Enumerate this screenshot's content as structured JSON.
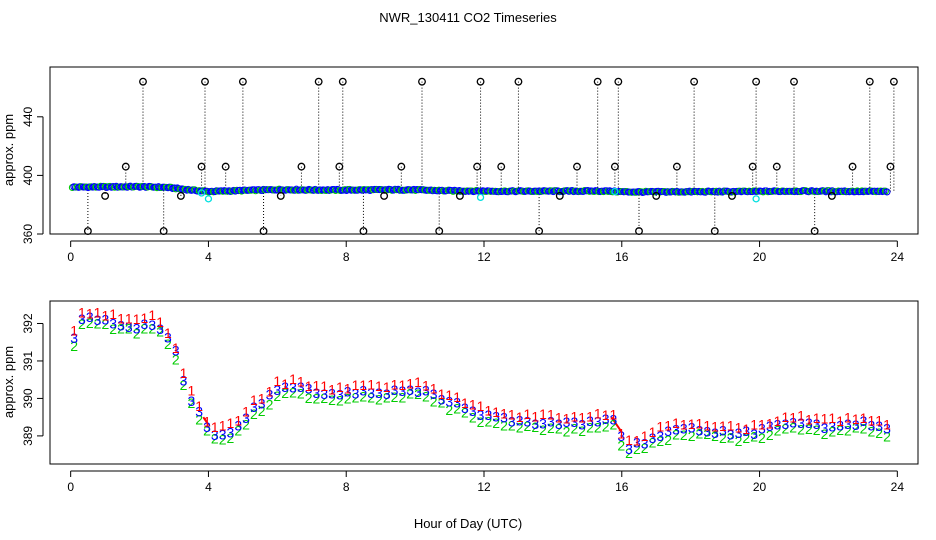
{
  "chart_data": {
    "type": "scatter",
    "title": "NWR_130411  CO2 Timeseries",
    "xlabel": "Hour of Day (UTC)",
    "colors": {
      "red": "#ff0000",
      "green": "#00cc00",
      "blue": "#0000ff",
      "cyan": "#00e0e0",
      "black": "#000000",
      "orange": "#ff8c00"
    },
    "panels": [
      {
        "name": "top",
        "ylabel": "approx. ppm",
        "xlim": [
          -0.6,
          24.6
        ],
        "ylim": [
          360,
          474
        ],
        "xticks": [
          0,
          4,
          8,
          12,
          16,
          20,
          24
        ],
        "xtick_labels": [
          "0",
          "4",
          "8",
          "12",
          "16",
          "20",
          "24"
        ],
        "yticks": [
          360,
          400,
          440
        ],
        "ytick_labels": [
          "360",
          "400",
          "440"
        ],
        "baseline": [
          [
            0.0,
            392.0
          ],
          [
            2.0,
            392.3
          ],
          [
            2.8,
            391.8
          ],
          [
            3.5,
            390.0
          ],
          [
            4.0,
            389.0
          ],
          [
            6.0,
            390.3
          ],
          [
            7.5,
            390.0
          ],
          [
            9.8,
            390.2
          ],
          [
            11.0,
            389.5
          ],
          [
            12.5,
            389.2
          ],
          [
            15.5,
            389.3
          ],
          [
            16.2,
            388.7
          ],
          [
            19.7,
            389.0
          ],
          [
            21.0,
            389.3
          ],
          [
            23.7,
            389.0
          ]
        ],
        "outlier_x": [
          0.5,
          1.0,
          1.6,
          2.1,
          2.7,
          3.2,
          3.8,
          3.9,
          4.5,
          5.0,
          5.6,
          6.1,
          6.7,
          7.2,
          7.8,
          7.9,
          8.5,
          9.1,
          9.6,
          10.2,
          10.7,
          11.3,
          11.8,
          11.9,
          12.5,
          13.0,
          13.6,
          14.2,
          14.7,
          15.3,
          15.8,
          15.9,
          16.5,
          17.0,
          17.6,
          18.1,
          18.7,
          19.2,
          19.8,
          19.9,
          20.5,
          21.0,
          21.6,
          22.1,
          22.7,
          23.2,
          23.8,
          23.9
        ],
        "outlier_y": [
          362,
          386,
          406,
          464,
          362,
          386,
          406,
          464,
          406,
          464,
          362,
          386,
          406,
          464,
          406,
          464,
          362,
          386,
          406,
          464,
          362,
          386,
          406,
          464,
          406,
          464,
          362,
          386,
          406,
          464,
          406,
          464,
          362,
          386,
          406,
          464,
          362,
          386,
          406,
          464,
          406,
          464,
          362,
          386,
          406,
          464,
          406,
          464
        ],
        "cyan_points": [
          [
            3.8,
            388.0
          ],
          [
            4.0,
            384.0
          ],
          [
            11.9,
            385.0
          ],
          [
            15.8,
            389.0
          ],
          [
            19.9,
            384.0
          ]
        ]
      },
      {
        "name": "bottom",
        "ylabel": "approx. ppm",
        "xlim": [
          -0.6,
          24.6
        ],
        "ylim": [
          388.25,
          392.6
        ],
        "xticks": [
          0,
          4,
          8,
          12,
          16,
          20,
          24
        ],
        "xtick_labels": [
          "0",
          "4",
          "8",
          "12",
          "16",
          "20",
          "24"
        ],
        "yticks": [
          389,
          390,
          391,
          392
        ],
        "ytick_labels": [
          "389",
          "390",
          "391",
          "392"
        ],
        "series_labels": [
          "1",
          "2",
          "3"
        ],
        "profile": [
          [
            0.1,
            391.6
          ],
          [
            0.3,
            392.15
          ],
          [
            1.0,
            392.1
          ],
          [
            1.5,
            392.0
          ],
          [
            2.0,
            391.9
          ],
          [
            2.3,
            392.05
          ],
          [
            2.6,
            391.9
          ],
          [
            2.8,
            391.6
          ],
          [
            3.0,
            391.4
          ],
          [
            3.2,
            390.7
          ],
          [
            3.5,
            390.0
          ],
          [
            3.9,
            389.3
          ],
          [
            4.2,
            389.05
          ],
          [
            4.6,
            389.1
          ],
          [
            5.0,
            389.4
          ],
          [
            5.3,
            389.75
          ],
          [
            5.6,
            389.9
          ],
          [
            6.0,
            390.25
          ],
          [
            6.5,
            390.3
          ],
          [
            7.0,
            390.2
          ],
          [
            7.5,
            390.1
          ],
          [
            8.0,
            390.15
          ],
          [
            8.5,
            390.2
          ],
          [
            9.0,
            390.15
          ],
          [
            9.5,
            390.2
          ],
          [
            10.0,
            390.25
          ],
          [
            10.5,
            390.1
          ],
          [
            11.0,
            389.9
          ],
          [
            11.5,
            389.75
          ],
          [
            12.0,
            389.55
          ],
          [
            12.5,
            389.45
          ],
          [
            13.0,
            389.4
          ],
          [
            13.5,
            389.35
          ],
          [
            14.0,
            389.4
          ],
          [
            14.5,
            389.3
          ],
          [
            15.0,
            389.35
          ],
          [
            15.5,
            389.45
          ],
          [
            15.8,
            389.4
          ],
          [
            16.0,
            388.9
          ],
          [
            16.2,
            388.7
          ],
          [
            16.6,
            388.8
          ],
          [
            17.0,
            389.0
          ],
          [
            17.5,
            389.15
          ],
          [
            18.0,
            389.2
          ],
          [
            18.5,
            389.15
          ],
          [
            19.0,
            389.1
          ],
          [
            19.5,
            389.05
          ],
          [
            19.8,
            389.1
          ],
          [
            20.2,
            389.2
          ],
          [
            20.7,
            389.3
          ],
          [
            21.0,
            389.35
          ],
          [
            21.5,
            389.3
          ],
          [
            22.0,
            389.25
          ],
          [
            22.5,
            389.3
          ],
          [
            23.0,
            389.35
          ],
          [
            23.7,
            389.2
          ]
        ],
        "gap_segments": [
          [
            [
              3.85,
              389.5
            ],
            [
              4.0,
              389.3
            ]
          ],
          [
            [
              15.7,
              389.5
            ],
            [
              16.0,
              389.1
            ]
          ]
        ]
      }
    ]
  }
}
